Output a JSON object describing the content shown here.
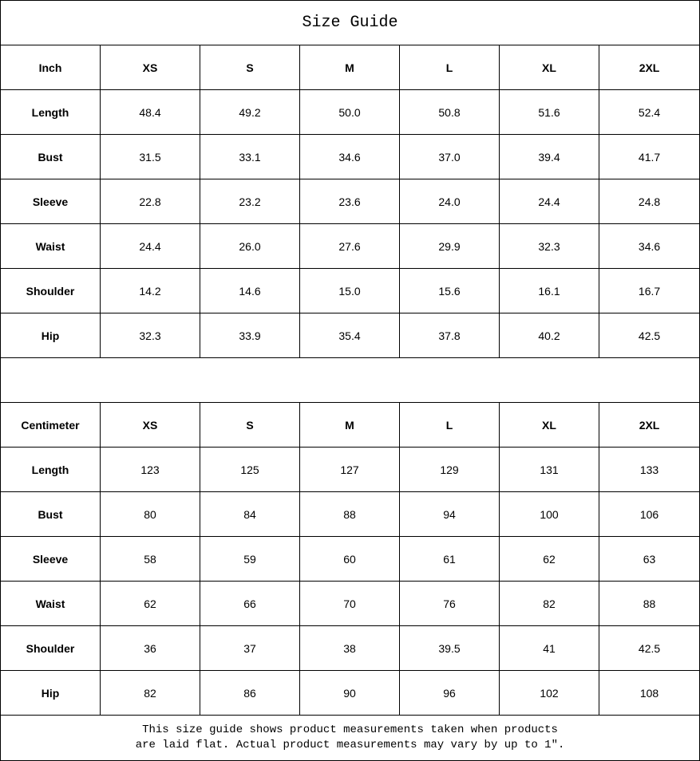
{
  "title": "Size Guide",
  "sizes": [
    "XS",
    "S",
    "M",
    "L",
    "XL",
    "2XL"
  ],
  "tables": [
    {
      "unit": "Inch",
      "rows": [
        {
          "label": "Length",
          "values": [
            "48.4",
            "49.2",
            "50.0",
            "50.8",
            "51.6",
            "52.4"
          ]
        },
        {
          "label": "Bust",
          "values": [
            "31.5",
            "33.1",
            "34.6",
            "37.0",
            "39.4",
            "41.7"
          ]
        },
        {
          "label": "Sleeve",
          "values": [
            "22.8",
            "23.2",
            "23.6",
            "24.0",
            "24.4",
            "24.8"
          ]
        },
        {
          "label": "Waist",
          "values": [
            "24.4",
            "26.0",
            "27.6",
            "29.9",
            "32.3",
            "34.6"
          ]
        },
        {
          "label": "Shoulder",
          "values": [
            "14.2",
            "14.6",
            "15.0",
            "15.6",
            "16.1",
            "16.7"
          ]
        },
        {
          "label": "Hip",
          "values": [
            "32.3",
            "33.9",
            "35.4",
            "37.8",
            "40.2",
            "42.5"
          ]
        }
      ]
    },
    {
      "unit": "Centimeter",
      "rows": [
        {
          "label": "Length",
          "values": [
            "123",
            "125",
            "127",
            "129",
            "131",
            "133"
          ]
        },
        {
          "label": "Bust",
          "values": [
            "80",
            "84",
            "88",
            "94",
            "100",
            "106"
          ]
        },
        {
          "label": "Sleeve",
          "values": [
            "58",
            "59",
            "60",
            "61",
            "62",
            "63"
          ]
        },
        {
          "label": "Waist",
          "values": [
            "62",
            "66",
            "70",
            "76",
            "82",
            "88"
          ]
        },
        {
          "label": "Shoulder",
          "values": [
            "36",
            "37",
            "38",
            "39.5",
            "41",
            "42.5"
          ]
        },
        {
          "label": "Hip",
          "values": [
            "82",
            "86",
            "90",
            "96",
            "102",
            "108"
          ]
        }
      ]
    }
  ],
  "note_line1": "This size guide shows product measurements taken when products",
  "note_line2": "are laid flat. Actual product measurements may vary by up to 1″."
}
